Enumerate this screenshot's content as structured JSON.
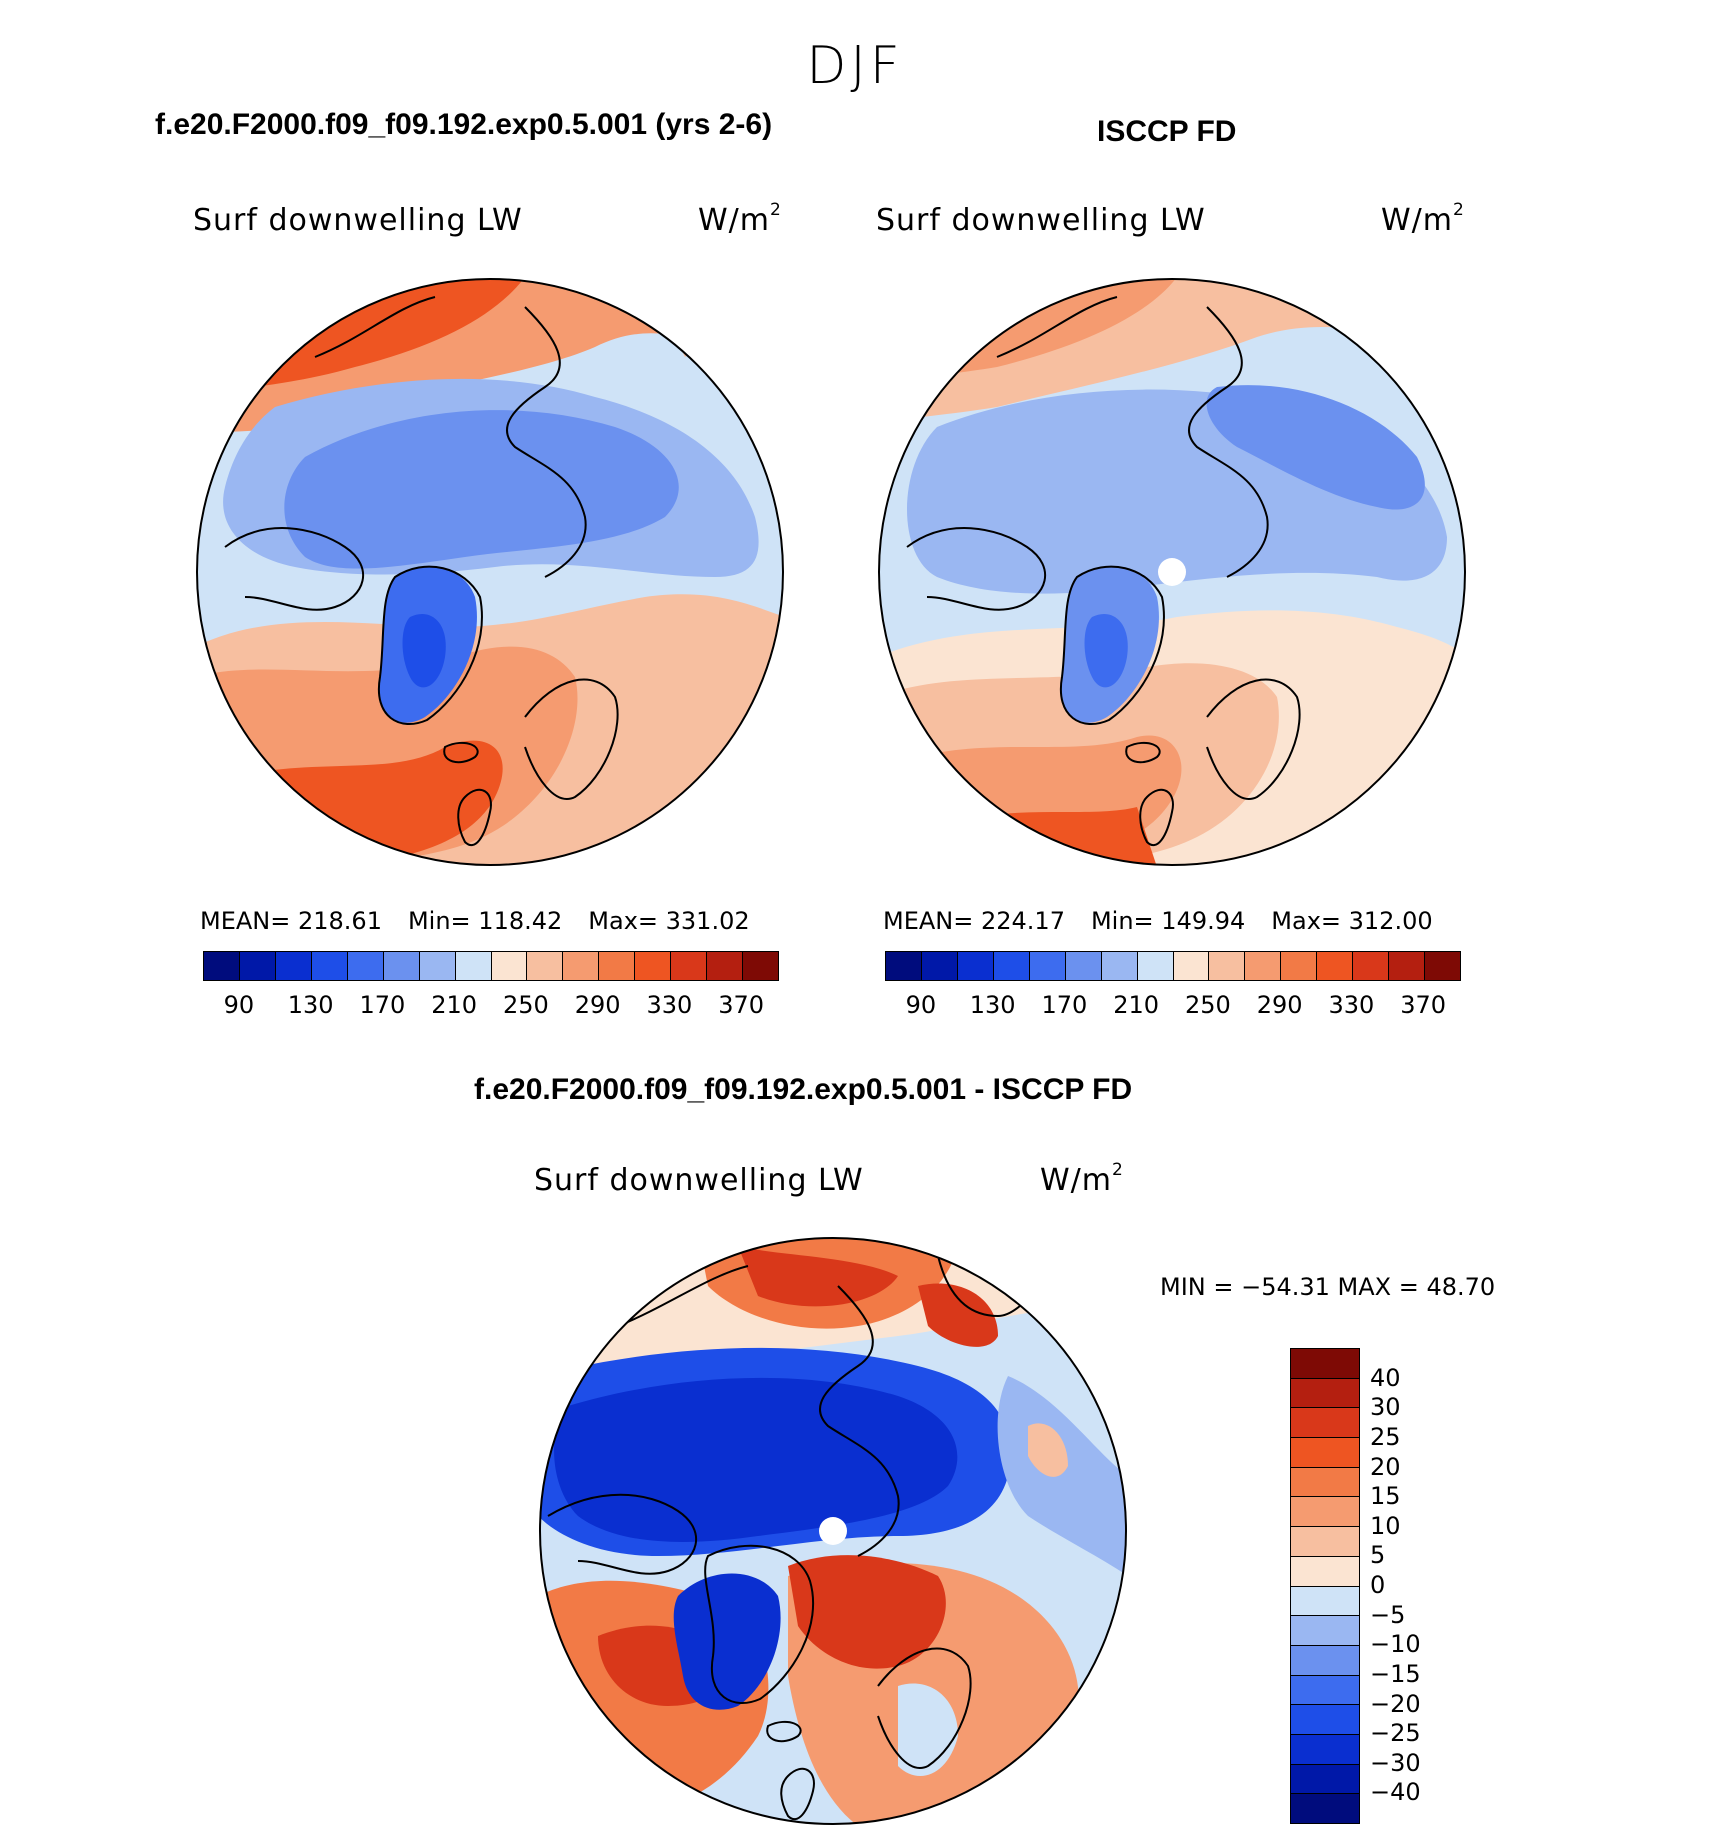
{
  "season": "DJF",
  "panels": {
    "model": {
      "case_title": "f.e20.F2000.f09_f09.192.exp0.5.001 (yrs 2-6)",
      "variable": "Surf downwelling LW",
      "units": "W/m",
      "units_exp": "2",
      "stats": {
        "mean": "MEAN= 218.61",
        "min": "Min= 118.42",
        "max": "Max= 331.02"
      }
    },
    "obs": {
      "case_title": "ISCCP FD",
      "variable": "Surf downwelling LW",
      "units": "W/m",
      "units_exp": "2",
      "stats": {
        "mean": "MEAN= 224.17",
        "min": "Min= 149.94",
        "max": "Max= 312.00"
      }
    },
    "diff": {
      "case_title": "f.e20.F2000.f09_f09.192.exp0.5.001 - ISCCP FD",
      "variable": "Surf downwelling LW",
      "units": "W/m",
      "units_exp": "2",
      "minmax": "MIN = −54.31 MAX =   48.70"
    }
  },
  "colorbar_main": {
    "colors": [
      "#000c7d",
      "#0018a8",
      "#0a2fd0",
      "#1e4ee8",
      "#3d6cef",
      "#6b91ef",
      "#9ab7f2",
      "#cfe3f7",
      "#fbe4d2",
      "#f7bfa0",
      "#f59b70",
      "#f27a46",
      "#ee5522",
      "#d9381a",
      "#b41f10",
      "#7e0a05"
    ],
    "ticks": [
      "90",
      "130",
      "170",
      "210",
      "250",
      "290",
      "330",
      "370"
    ]
  },
  "colorbar_diff": {
    "colors": [
      "#7e0a05",
      "#b41f10",
      "#d9381a",
      "#ee5522",
      "#f27a46",
      "#f59b70",
      "#f7bfa0",
      "#fbe4d2",
      "#cfe3f7",
      "#9ab7f2",
      "#6b91ef",
      "#3d6cef",
      "#1e4ee8",
      "#0a2fd0",
      "#0018a8",
      "#000c7d"
    ],
    "ticks": [
      "40",
      "30",
      "25",
      "20",
      "15",
      "10",
      "5",
      "0",
      "−5",
      "−10",
      "−15",
      "−20",
      "−25",
      "−30",
      "−40"
    ]
  }
}
